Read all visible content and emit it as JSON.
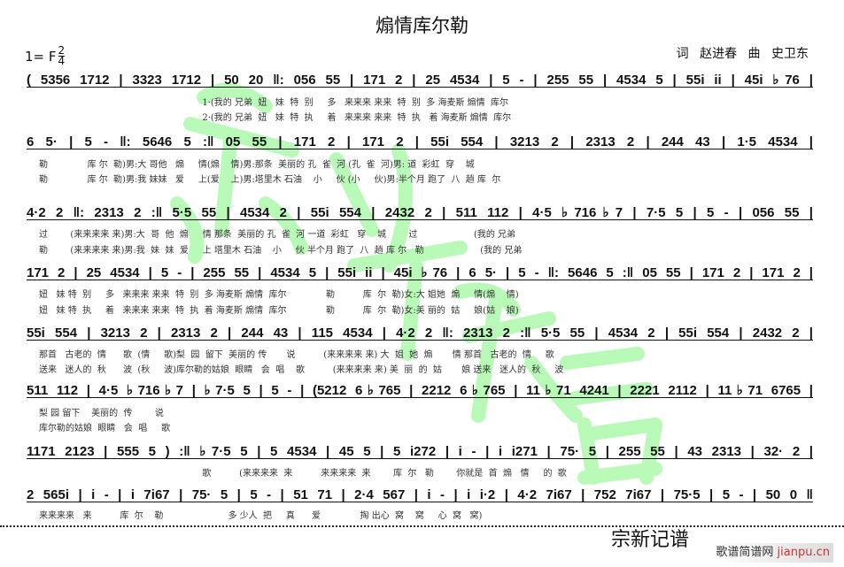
{
  "title": "煽情库尔勒",
  "key": "1= F",
  "time": {
    "top": "2",
    "bottom": "4"
  },
  "credits": "词 赵进春  曲 史卫东",
  "systems": [
    {
      "notes": "( 5356 1712 | 3323 1712 | 50 20 ‖: 056 55 | 171 2 | 25 4534 | 5 - | 255 55 | 4534 5 | 55i ii | 45i ♭76 |",
      "lyrics": [
        "                                                          1·(我的 兄弟  妞   妹  特  别     多   来来来 来来  特  别  多 海麦斯 煽情  库尔",
        "                                                          2·(我的 兄弟  妞   妹  特  执     着   来来来 来来  特  执   着 海麦斯 煽情  库尔"
      ]
    },
    {
      "notes": "6 5· | 5 - ‖: 5646 5 :‖ 05 55 | 171 2 | 171 2 | 55i 554 | 3213 2 | 2313 2 | 244 43 | 1·5 4534 |",
      "lyrics": [
        "勒              库 尔  勒)男:大 哥他   煽     情(煽    情)男:那条  美丽的 孔  雀  河 (孔  雀  河)男: 道  彩虹  穿    城",
        "勒              库 尔  勒)男:我 妹妹   爱     上(爱    上)男:塔里木 石油    小     伙 (小     伙)男:半个月 跑了  八  趟 库  尔"
      ]
    },
    {
      "notes": "4·2 2 ‖: 2313 2 :‖ 5·5 55 | 4534 2 | 55i 554 | 2432 2 | 511 112 | 4·5 ♭716♭7 | 7·5 5 | 5 - | 056 55 |",
      "lyrics": [
        "过        (来来来来 来)男:大  哥  他  煽     情 那条  美丽的 孔  雀  河 一道  彩虹   穿    城        过                    (我的 兄弟",
        "勒        (来来来来 来)男:我  妹  妹  爱     上 塔里木 石油    小     伙 半个月 跑了  八  趟 库 尔   勒                    (我的 兄弟"
      ]
    },
    {
      "notes": "171 2 | 25 4534 | 5 - | 255 55 | 4534 5 | 55i ii | 45i ♭76 | 6 5· | 5 - ‖: 5646 5 :‖ 05 55 | 171 2 | 171 2 |",
      "lyrics": [
        "妞   妹 特  别     多   来来来 来来  特  别  多 海麦斯 煽情  库尔              勒          库  尔  勒)女:大 姐她  煽     情(煽    情)",
        "妞   妹 特  执     着   来来来 来来  特  执  着 海麦斯 煽情  库尔              勒          库  尔  勒)女:美 丽的  姑     娘(姑    娘)"
      ]
    },
    {
      "notes": "55i 554 | 3213 2 | 2313 2 | 244 43 | 115 4534 | 4·2 2 ‖: 2313 2 :‖ 5·5 55 | 4534 2 | 55i 554 | 2432 2 |",
      "lyrics": [
        "那首   古老的  情      歌  (情     歌)梨  园  留下  美丽的 传       说          (来来来来 来) 大  姐  她  煽       情 那首   古老的  情     歌",
        "送来   迷人的  秋      波  (秋     波)库尔勒的姑娘  眼睛   会  唱    歌          (来来来来 来) 美  丽  的  姑       娘 送来   迷人的  秋     波"
      ]
    },
    {
      "notes": "511 112 | 4·5 ♭716♭7 | ♭7·5 5 | 5 - | (5212 6♭765 | 2212 6♭765 | 11♭71 4241 | 2221 2112 | 11♭71 6765 |",
      "lyrics": [
        "梨 园 留下    美丽的  传        说",
        "库尔勒的姑娘  眼睛   会  唱     歌"
      ]
    },
    {
      "notes": "1171 2123 | 555 5 ) :‖ ♭7·5 5 | 5 4534 | 45 5 | 5 i272 | i - | i i271 | 75· 5 | 255 55 | 43 2313 | 32· 2 |",
      "lyrics": [
        "                                                          歌          (来来来来  来          来来来来  来        库  尔   勒        你就是  首  煽   情     的  歌"
      ]
    },
    {
      "notes": "2 565i | i - | i 7i67 | 75· 5 | 5 - | 51 71 | 2·4 567 | i - | i i·2 | 4·2 7i67 | 752 7i67 | 75·5 | 5 - | 50 0 ‖",
      "lyrics": [
        "来来来来   来          库  尔    勒                       多 少人  把     真      爱              掏 出心  窝    窝     心  窝   窝)"
      ]
    }
  ],
  "watermark": "宗新记谱",
  "signature": "宗新记谱",
  "site_logo": {
    "cn": "歌谱简谱网",
    "en": "jianpu.cn"
  },
  "colors": {
    "watermark": "#7ff57f",
    "ink": "#111111"
  }
}
